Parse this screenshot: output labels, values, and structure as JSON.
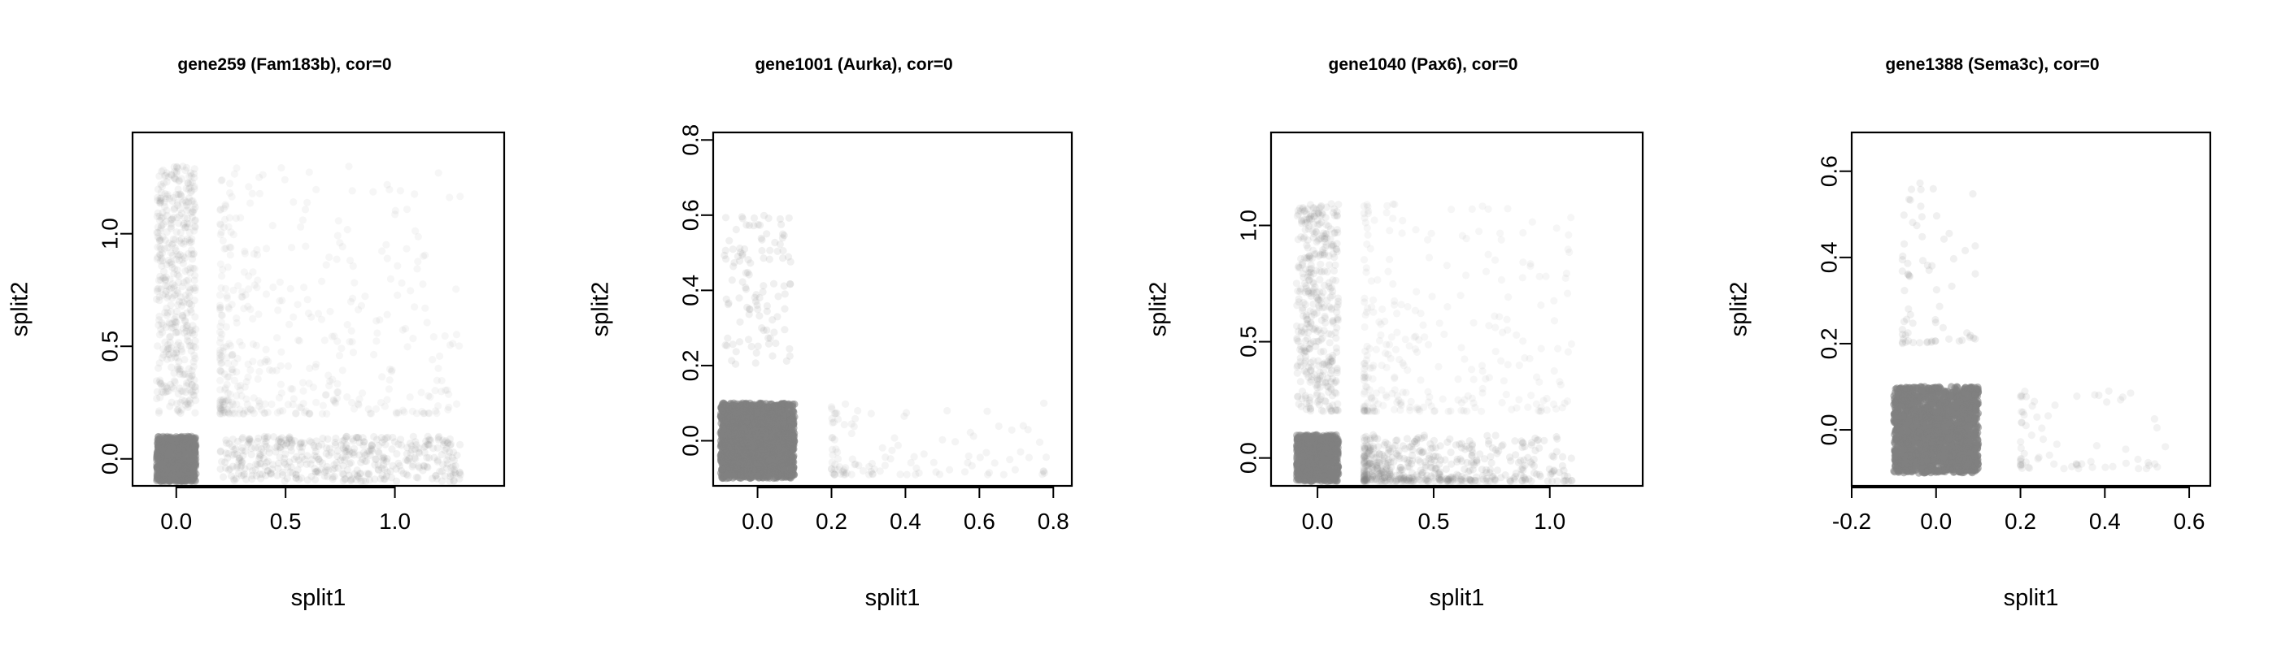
{
  "colors": {
    "point": "#808080",
    "axis": "#000000",
    "background": "#ffffff"
  },
  "chart_data": [
    {
      "type": "scatter",
      "title": "gene259 (Fam183b), cor=0",
      "xlabel": "split1",
      "ylabel": "split2",
      "xlim": [
        -0.2,
        1.5
      ],
      "ylim": [
        -0.12,
        1.45
      ],
      "xticks": [
        0.0,
        0.5,
        1.0
      ],
      "xtick_labels": [
        "0.0",
        "0.5",
        "1.0"
      ],
      "yticks": [
        0.0,
        0.5,
        1.0
      ],
      "ytick_labels": [
        "0.0",
        "0.5",
        "1.0"
      ],
      "grid": false,
      "clusters": [
        {
          "x": [
            -0.09,
            0.09
          ],
          "y": [
            -0.1,
            0.1
          ],
          "n": 900,
          "alpha": 0.45
        },
        {
          "x": [
            -0.09,
            0.09
          ],
          "y": [
            0.2,
            1.3
          ],
          "n": 450,
          "alpha": 0.09
        },
        {
          "x": [
            0.2,
            1.3
          ],
          "y": [
            -0.1,
            0.1
          ],
          "n": 450,
          "alpha": 0.1
        },
        {
          "x": [
            0.2,
            1.3
          ],
          "y": [
            0.2,
            1.3
          ],
          "n": 420,
          "alpha": 0.07,
          "decay": true
        }
      ]
    },
    {
      "type": "scatter",
      "title": "gene1001 (Aurka), cor=0",
      "xlabel": "split1",
      "ylabel": "split2",
      "xlim": [
        -0.12,
        0.85
      ],
      "ylim": [
        -0.12,
        0.82
      ],
      "xticks": [
        0.0,
        0.2,
        0.4,
        0.6,
        0.8
      ],
      "xtick_labels": [
        "0.0",
        "0.2",
        "0.4",
        "0.6",
        "0.8"
      ],
      "yticks": [
        0.0,
        0.2,
        0.4,
        0.6,
        0.8
      ],
      "ytick_labels": [
        "0.0",
        "0.2",
        "0.4",
        "0.6",
        "0.8"
      ],
      "grid": false,
      "clusters": [
        {
          "x": [
            -0.1,
            0.1
          ],
          "y": [
            -0.1,
            0.1
          ],
          "n": 1800,
          "alpha": 0.55
        },
        {
          "x": [
            -0.09,
            0.09
          ],
          "y": [
            0.2,
            0.6
          ],
          "n": 110,
          "alpha": 0.12
        },
        {
          "x": [
            0.2,
            0.8
          ],
          "y": [
            -0.09,
            0.1
          ],
          "n": 110,
          "alpha": 0.09,
          "decay": true
        }
      ]
    },
    {
      "type": "scatter",
      "title": "gene1040 (Pax6), cor=0",
      "xlabel": "split1",
      "ylabel": "split2",
      "xlim": [
        -0.2,
        1.4
      ],
      "ylim": [
        -0.12,
        1.4
      ],
      "xticks": [
        0.0,
        0.5,
        1.0
      ],
      "xtick_labels": [
        "0.0",
        "0.5",
        "1.0"
      ],
      "yticks": [
        0.0,
        0.5,
        1.0
      ],
      "ytick_labels": [
        "0.0",
        "0.5",
        "1.0"
      ],
      "grid": false,
      "clusters": [
        {
          "x": [
            -0.09,
            0.09
          ],
          "y": [
            -0.1,
            0.1
          ],
          "n": 900,
          "alpha": 0.45
        },
        {
          "x": [
            -0.09,
            0.09
          ],
          "y": [
            0.2,
            1.1
          ],
          "n": 400,
          "alpha": 0.1
        },
        {
          "x": [
            0.2,
            1.1
          ],
          "y": [
            -0.1,
            0.1
          ],
          "n": 500,
          "alpha": 0.12,
          "decay": true
        },
        {
          "x": [
            0.2,
            1.1
          ],
          "y": [
            0.2,
            1.1
          ],
          "n": 280,
          "alpha": 0.07,
          "decay": true
        }
      ]
    },
    {
      "type": "scatter",
      "title": "gene1388 (Sema3c), cor=0",
      "xlabel": "split1",
      "ylabel": "split2",
      "xlim": [
        -0.2,
        0.65
      ],
      "ylim": [
        -0.13,
        0.69
      ],
      "xticks": [
        -0.2,
        0.0,
        0.2,
        0.4,
        0.6
      ],
      "xtick_labels": [
        "-0.2",
        "0.0",
        "0.2",
        "0.4",
        "0.6"
      ],
      "yticks": [
        0.0,
        0.2,
        0.4,
        0.6
      ],
      "ytick_labels": [
        "0.0",
        "0.2",
        "0.4",
        "0.6"
      ],
      "grid": false,
      "clusters": [
        {
          "x": [
            -0.1,
            0.1
          ],
          "y": [
            -0.1,
            0.1
          ],
          "n": 1800,
          "alpha": 0.55
        },
        {
          "x": [
            -0.08,
            0.1
          ],
          "y": [
            0.2,
            0.6
          ],
          "n": 70,
          "alpha": 0.12,
          "decay": true
        },
        {
          "x": [
            0.2,
            0.55
          ],
          "y": [
            -0.09,
            0.1
          ],
          "n": 70,
          "alpha": 0.1,
          "decay": true
        }
      ]
    }
  ]
}
